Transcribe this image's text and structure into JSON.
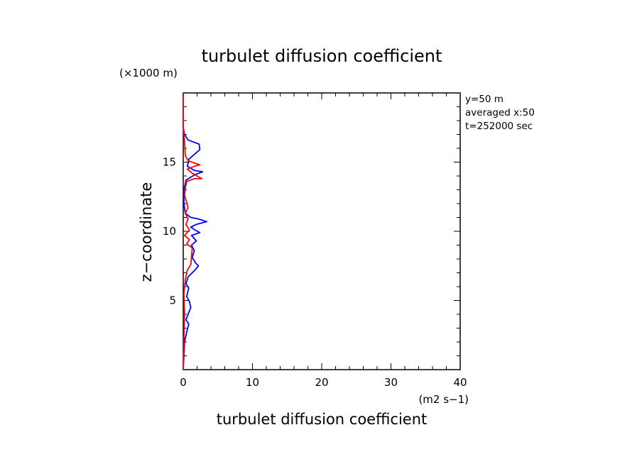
{
  "chart_data": {
    "type": "line",
    "title": "turbulet diffusion coefficient",
    "xlabel": "turbulet diffusion coefficient",
    "ylabel": "z−coordinate",
    "x_unit": "(m2 s−1)",
    "y_unit": "(×1000 m)",
    "xlim": [
      0,
      40
    ],
    "ylim": [
      0,
      20
    ],
    "x_ticks": [
      0,
      10,
      20,
      30,
      40
    ],
    "y_ticks": [
      5,
      10,
      15
    ],
    "grid": false,
    "legend": "none",
    "annotations": [
      "y=50 m",
      "averaged  x:50",
      "t=252000 sec"
    ],
    "series": [
      {
        "color": "#0000ff",
        "points": [
          [
            0,
            0
          ],
          [
            0.1,
            1
          ],
          [
            0.2,
            2
          ],
          [
            0.5,
            2.7
          ],
          [
            0.8,
            3.3
          ],
          [
            0.4,
            3.6
          ],
          [
            0.7,
            4
          ],
          [
            1.1,
            4.5
          ],
          [
            0.9,
            4.9
          ],
          [
            0.5,
            5.3
          ],
          [
            0.8,
            5.9
          ],
          [
            0.4,
            6.2
          ],
          [
            0.7,
            6.7
          ],
          [
            1.7,
            7.2
          ],
          [
            2.2,
            7.5
          ],
          [
            1.8,
            7.7
          ],
          [
            1.3,
            8.1
          ],
          [
            1.6,
            8.6
          ],
          [
            1.2,
            9
          ],
          [
            1.9,
            9.3
          ],
          [
            1.2,
            9.7
          ],
          [
            2.4,
            9.9
          ],
          [
            1.7,
            10.1
          ],
          [
            1.1,
            10.3
          ],
          [
            1.9,
            10.5
          ],
          [
            3.4,
            10.7
          ],
          [
            2.1,
            10.9
          ],
          [
            1.1,
            11
          ],
          [
            0.3,
            11.3
          ],
          [
            0.1,
            12
          ],
          [
            0.1,
            13
          ],
          [
            0.4,
            13.7
          ],
          [
            1.7,
            14.1
          ],
          [
            2.8,
            14.3
          ],
          [
            1.6,
            14.4
          ],
          [
            0.6,
            14.7
          ],
          [
            0.8,
            15.2
          ],
          [
            1.7,
            15.6
          ],
          [
            2.4,
            15.9
          ],
          [
            2.3,
            16.3
          ],
          [
            0.7,
            16.6
          ],
          [
            0.2,
            17
          ],
          [
            0,
            17.5
          ],
          [
            0,
            20
          ]
        ]
      },
      {
        "color": "#ff0000",
        "points": [
          [
            0,
            0
          ],
          [
            0.1,
            2
          ],
          [
            0.2,
            4
          ],
          [
            0.1,
            5.5
          ],
          [
            0.3,
            6.5
          ],
          [
            0.6,
            7.2
          ],
          [
            1.1,
            7.6
          ],
          [
            1.2,
            8.2
          ],
          [
            1.3,
            8.8
          ],
          [
            0.5,
            9.1
          ],
          [
            0.9,
            9.4
          ],
          [
            0.2,
            9.7
          ],
          [
            0.9,
            10.1
          ],
          [
            0.4,
            10.5
          ],
          [
            0.7,
            10.9
          ],
          [
            0.3,
            11.3
          ],
          [
            0.7,
            11.7
          ],
          [
            0.5,
            12.1
          ],
          [
            0.2,
            12.6
          ],
          [
            0.3,
            13.1
          ],
          [
            0.5,
            13.6
          ],
          [
            1.6,
            13.8
          ],
          [
            2.7,
            13.8
          ],
          [
            1.3,
            14.2
          ],
          [
            0.6,
            14.5
          ],
          [
            1.6,
            14.7
          ],
          [
            2.4,
            14.8
          ],
          [
            0.7,
            15.1
          ],
          [
            0.3,
            15.5
          ],
          [
            0.2,
            16.5
          ],
          [
            0,
            17.5
          ],
          [
            0,
            20
          ]
        ]
      }
    ]
  }
}
